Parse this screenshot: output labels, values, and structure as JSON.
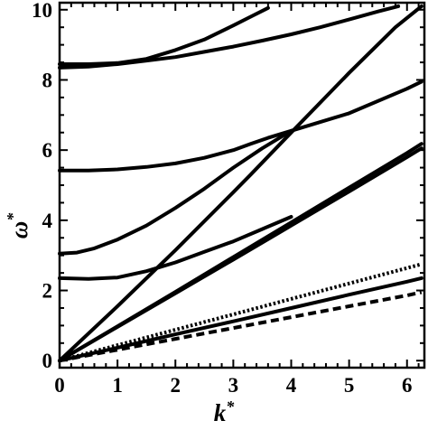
{
  "chart_data": {
    "type": "line",
    "xlabel": "k",
    "xlabel_sup": "*",
    "ylabel": "ω",
    "ylabel_sup": "*",
    "xlim": [
      0,
      6.3
    ],
    "ylim": [
      -0.2,
      10.2
    ],
    "x_ticks": [
      0,
      1,
      2,
      3,
      4,
      5,
      6
    ],
    "y_ticks": [
      0,
      2,
      4,
      6,
      8,
      10
    ],
    "grid": false,
    "legend": "none",
    "series": [
      {
        "style": "solid",
        "x": [
          0,
          1,
          2,
          3,
          3.3,
          4,
          5,
          5.8,
          6.25
        ],
        "y": [
          0,
          1.55,
          3.15,
          4.8,
          5.3,
          6.5,
          8.2,
          9.5,
          10.1
        ]
      },
      {
        "style": "solid",
        "x": [
          0,
          1,
          2,
          3,
          4,
          5,
          6,
          6.25
        ],
        "y": [
          0,
          0.96,
          1.92,
          2.88,
          3.85,
          4.82,
          5.8,
          6.05
        ]
      },
      {
        "style": "solid",
        "x": [
          0,
          1,
          2,
          3,
          4,
          5,
          6,
          6.25
        ],
        "y": [
          0,
          0.98,
          1.96,
          2.95,
          3.94,
          4.93,
          5.92,
          6.18
        ]
      },
      {
        "style": "solid",
        "x": [
          0,
          1,
          2,
          3,
          4,
          5,
          6,
          6.25
        ],
        "y": [
          0,
          0.37,
          0.75,
          1.12,
          1.5,
          1.88,
          2.25,
          2.35
        ]
      },
      {
        "style": "dotted",
        "x": [
          0,
          1,
          2,
          3,
          4,
          5,
          6,
          6.25
        ],
        "y": [
          0,
          0.44,
          0.88,
          1.32,
          1.76,
          2.2,
          2.64,
          2.75
        ]
      },
      {
        "style": "dashed",
        "x": [
          0,
          1,
          2,
          3,
          4,
          5,
          6,
          6.25
        ],
        "y": [
          0,
          0.31,
          0.62,
          0.93,
          1.24,
          1.55,
          1.86,
          1.95
        ]
      },
      {
        "style": "solid",
        "x": [
          0,
          0.5,
          1,
          1.5,
          2,
          2.5,
          3,
          3.5,
          4
        ],
        "y": [
          2.35,
          2.33,
          2.37,
          2.55,
          2.8,
          3.1,
          3.4,
          3.75,
          4.1
        ]
      },
      {
        "style": "solid",
        "x": [
          0,
          0.3,
          0.6,
          1,
          1.5,
          2,
          2.5,
          3,
          3.5,
          4
        ],
        "y": [
          3.05,
          3.08,
          3.2,
          3.45,
          3.85,
          4.35,
          4.9,
          5.5,
          6.05,
          6.55
        ]
      },
      {
        "style": "solid",
        "x": [
          0,
          0.5,
          1,
          1.5,
          2,
          2.5,
          3,
          3.3,
          3.6,
          4,
          5,
          6,
          6.25
        ],
        "y": [
          5.42,
          5.42,
          5.45,
          5.52,
          5.62,
          5.78,
          6.0,
          6.18,
          6.35,
          6.55,
          7.05,
          7.75,
          7.95
        ]
      },
      {
        "style": "solid",
        "x": [
          0,
          0.5,
          1,
          1.5,
          2,
          2.5,
          3,
          3.5,
          4,
          4.5,
          5,
          5.5,
          5.85
        ],
        "y": [
          8.35,
          8.38,
          8.45,
          8.55,
          8.65,
          8.8,
          8.95,
          9.12,
          9.3,
          9.5,
          9.72,
          9.95,
          10.1
        ]
      },
      {
        "style": "solid",
        "x": [
          0,
          0.5,
          1,
          1.5,
          2,
          2.5,
          3,
          3.3,
          3.6
        ],
        "y": [
          8.45,
          8.45,
          8.48,
          8.6,
          8.85,
          9.15,
          9.55,
          9.8,
          10.05
        ]
      }
    ]
  }
}
